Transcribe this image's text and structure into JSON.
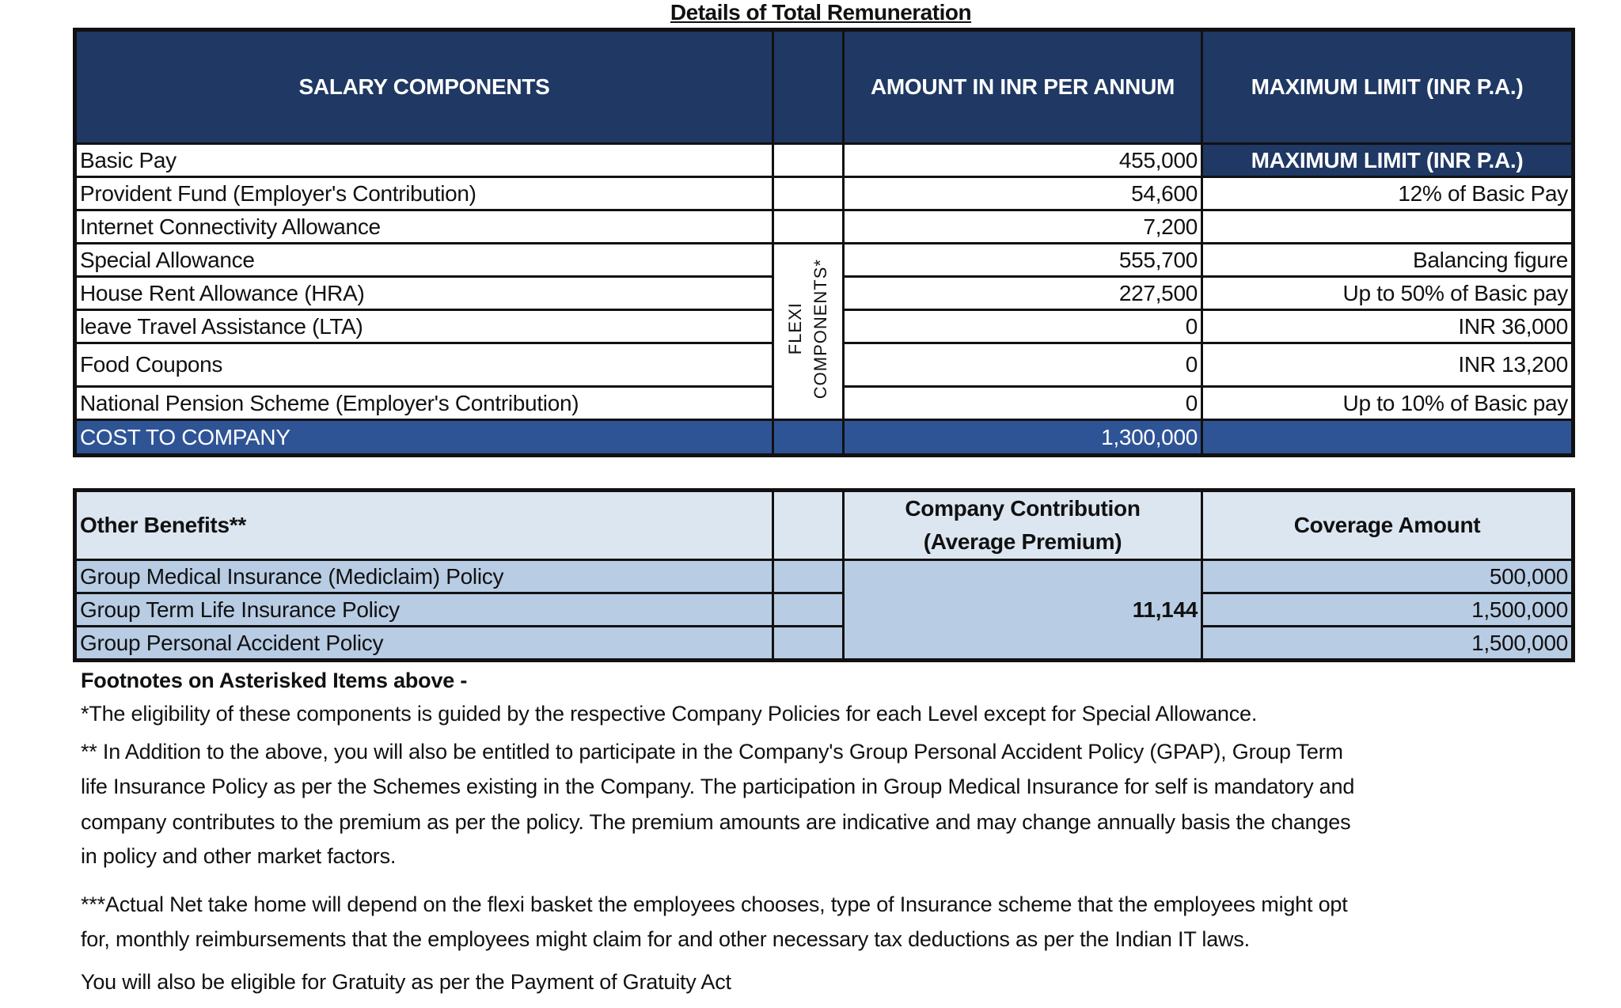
{
  "title": "Details of Total Remuneration",
  "salary_table": {
    "headers": [
      "SALARY COMPONENTS",
      "",
      "AMOUNT IN INR PER ANNUM",
      "MAXIMUM LIMIT (INR P.A.)"
    ],
    "flexi_label_line1": "FLEXI",
    "flexi_label_line2": "COMPONENTS*",
    "rows": [
      {
        "component": "Basic Pay",
        "amount": "455,000",
        "limit": "MAXIMUM LIMIT (INR P.A.)"
      },
      {
        "component": "Provident Fund (Employer's Contribution)",
        "amount": "54,600",
        "limit": "12% of Basic Pay"
      },
      {
        "component": "Internet Connectivity Allowance",
        "amount": "7,200",
        "limit": ""
      },
      {
        "component": "Special Allowance",
        "amount": "555,700",
        "limit": "Balancing figure"
      },
      {
        "component": "House Rent Allowance (HRA)",
        "amount": "227,500",
        "limit": "Up to 50% of Basic pay"
      },
      {
        "component": "leave Travel Assistance (LTA)",
        "amount": "0",
        "limit": "INR 36,000"
      },
      {
        "component": "Food Coupons",
        "amount": "0",
        "limit": "INR 13,200"
      },
      {
        "component": "National Pension Scheme (Employer's Contribution)",
        "amount": "0",
        "limit": "Up to 10% of Basic pay"
      }
    ],
    "total": {
      "label": "COST TO COMPANY",
      "amount": "1,300,000"
    }
  },
  "benefits_table": {
    "headers": [
      "Other Benefits**",
      "",
      "Company Contribution",
      "(Average Premium)",
      "Coverage Amount"
    ],
    "contribution": "11,144",
    "rows": [
      {
        "benefit": "Group Medical Insurance (Mediclaim) Policy",
        "coverage": "500,000"
      },
      {
        "benefit": "Group Term Life Insurance Policy",
        "coverage": "1,500,000"
      },
      {
        "benefit": "Group Personal Accident Policy",
        "coverage": "1,500,000"
      }
    ]
  },
  "footnotes": {
    "heading": "Footnotes on Asterisked Items above -",
    "lines": [
      "*The eligibility of these components is guided by the respective Company Policies for each Level except for Special Allowance.",
      "** In Addition to the above, you will also be entitled to participate in the Company's Group Personal Accident Policy (GPAP), Group Term",
      "life Insurance Policy as per the Schemes existing in the Company. The participation in Group Medical Insurance for self is mandatory and",
      "company contributes to the premium as per the policy. The premium amounts are indicative and may change annually basis the changes",
      "in policy and other market factors.",
      "***Actual Net take home will depend on the flexi basket the employees chooses, type of Insurance scheme that the employees might opt",
      "for, monthly reimbursements that the employees might claim for and other necessary tax deductions as per the Indian IT laws.",
      "You will also be eligible for Gratuity as per the Payment of Gratuity Act"
    ]
  },
  "colors": {
    "header_navy": "#1f3864",
    "ctc_blue": "#2f5496",
    "benefit_header": "#dce6f1",
    "benefit_row": "#b8cce4"
  }
}
